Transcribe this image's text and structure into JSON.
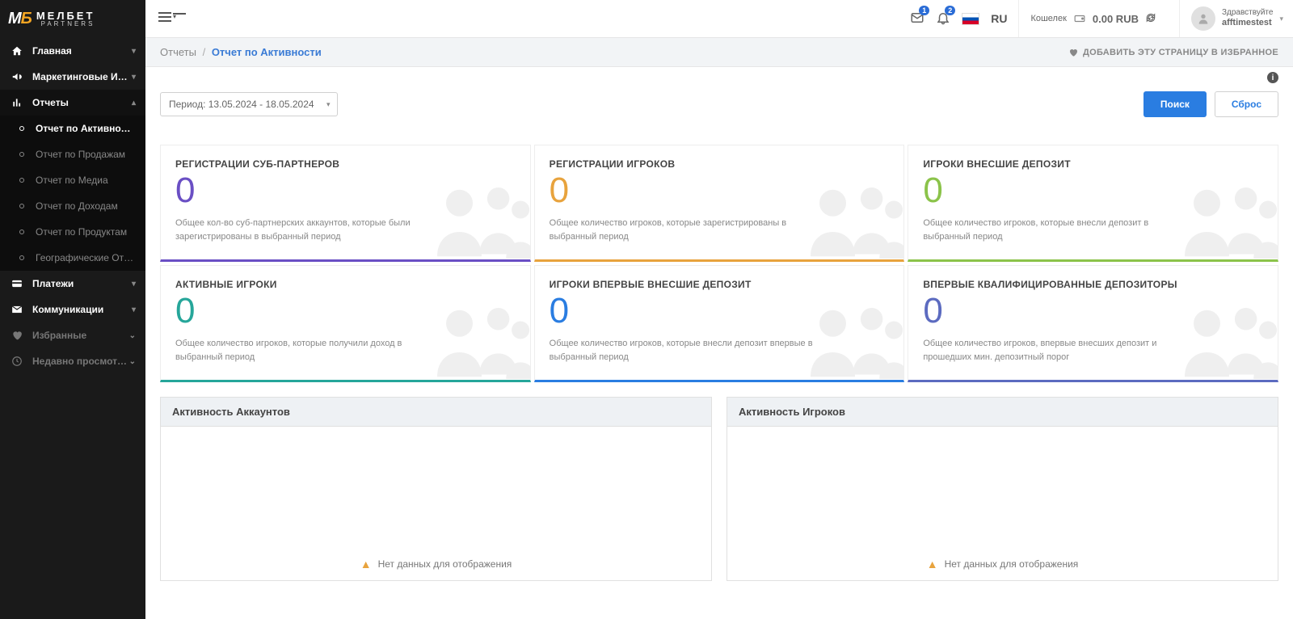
{
  "logo": {
    "brand_top": "МЕЛБЕТ",
    "brand_bot": "PARTNERS"
  },
  "sidebar": {
    "items": [
      {
        "label": "Главная",
        "icon": "home",
        "expandable": true
      },
      {
        "label": "Маркетинговые Инстр...",
        "icon": "bullhorn",
        "expandable": true
      },
      {
        "label": "Отчеты",
        "icon": "chart",
        "expandable": true,
        "expanded": true
      },
      {
        "label": "Платежи",
        "icon": "card",
        "expandable": true
      },
      {
        "label": "Коммуникации",
        "icon": "envelope",
        "expandable": true
      },
      {
        "label": "Избранные",
        "icon": "heart",
        "muted": true,
        "expandable": true
      },
      {
        "label": "Недавно просмотрен...",
        "icon": "clock",
        "muted": true,
        "expandable": true
      }
    ],
    "reports_sub": [
      {
        "label": "Отчет по Активности",
        "active": true
      },
      {
        "label": "Отчет по Продажам"
      },
      {
        "label": "Отчет по Медиа"
      },
      {
        "label": "Отчет по Доходам"
      },
      {
        "label": "Отчет по Продуктам"
      },
      {
        "label": "Географические Отче..."
      }
    ]
  },
  "topbar": {
    "notif_mail_count": "1",
    "notif_bell_count": "2",
    "lang": "RU",
    "wallet_label": "Кошелек",
    "wallet_amount": "0.00 RUB",
    "user_greet": "Здравствуйте",
    "user_name": "afftimestest"
  },
  "crumbs": {
    "parent": "Отчеты",
    "current": "Отчет по Активности",
    "fav_label": "ДОБАВИТЬ ЭТУ СТРАНИЦУ В ИЗБРАННОЕ"
  },
  "filter": {
    "period_label": "Период: 13.05.2024 - 18.05.2024",
    "search": "Поиск",
    "reset": "Сброс"
  },
  "kpis": [
    {
      "title": "РЕГИСТРАЦИИ СУБ-ПАРТНЕРОВ",
      "value": "0",
      "desc": "Общее кол-во суб-партнерских аккаунтов, которые были зарегистрированы в выбранный период",
      "color": "purple"
    },
    {
      "title": "РЕГИСТРАЦИИ ИГРОКОВ",
      "value": "0",
      "desc": "Общее количество игроков, которые зарегистрированы в выбранный период",
      "color": "orange"
    },
    {
      "title": "ИГРОКИ ВНЕСШИЕ ДЕПОЗИТ",
      "value": "0",
      "desc": "Общее количество игроков, которые внесли депозит в выбранный период",
      "color": "green"
    },
    {
      "title": "АКТИВНЫЕ ИГРОКИ",
      "value": "0",
      "desc": "Общее количество игроков, которые получили доход в выбранный период",
      "color": "teal"
    },
    {
      "title": "ИГРОКИ ВПЕРВЫЕ ВНЕСШИЕ ДЕПОЗИТ",
      "value": "0",
      "desc": "Общее количество игроков, которые внесли депозит впервые в выбранный период",
      "color": "blue"
    },
    {
      "title": "ВПЕРВЫЕ КВАЛИФИЦИРОВАННЫЕ ДЕПОЗИТОРЫ",
      "value": "0",
      "desc": "Общее количество игроков, впервые внесших депозит и прошедших мин. депозитный порог",
      "color": "indigo"
    }
  ],
  "panels": [
    {
      "title": "Активность Аккаунтов",
      "empty": "Нет данных для отображения"
    },
    {
      "title": "Активность Игроков",
      "empty": "Нет данных для отображения"
    }
  ]
}
